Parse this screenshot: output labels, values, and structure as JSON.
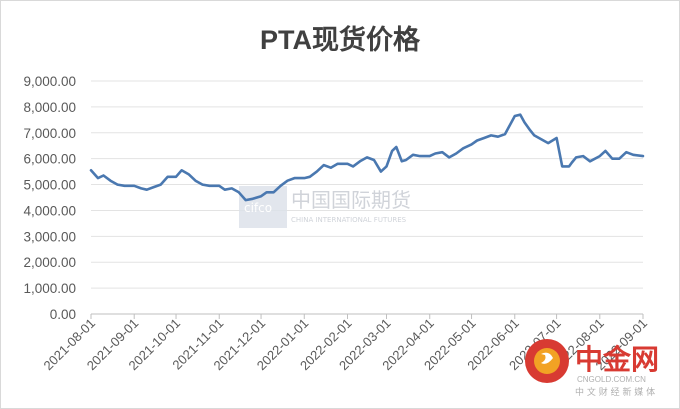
{
  "chart_data": {
    "type": "line",
    "title": "PTA现货价格",
    "xlabel": "",
    "ylabel": "",
    "ylim": [
      0,
      9000
    ],
    "yticks": [
      "9,000.00",
      "8,000.00",
      "7,000.00",
      "6,000.00",
      "5,000.00",
      "4,000.00",
      "3,000.00",
      "2,000.00",
      "1,000.00",
      "0.00"
    ],
    "xticks": [
      "2021-08-01",
      "2021-09-01",
      "2021-10-01",
      "2021-11-01",
      "2021-12-01",
      "2022-01-01",
      "2022-02-01",
      "2022-03-01",
      "2022-04-01",
      "2022-05-01",
      "2022-06-01",
      "2022-07-01",
      "2022-08-01",
      "2022-09-01"
    ],
    "grid": "horizontal",
    "legend": "none",
    "line_color": "#4a78b0",
    "series": [
      {
        "x": [
          "2021-08-01",
          "2021-08-06",
          "2021-08-10",
          "2021-08-15",
          "2021-08-20",
          "2021-08-25",
          "2021-09-01",
          "2021-09-06",
          "2021-09-10",
          "2021-09-15",
          "2021-09-20",
          "2021-09-25",
          "2021-10-01",
          "2021-10-05",
          "2021-10-10",
          "2021-10-15",
          "2021-10-20",
          "2021-10-25",
          "2021-11-01",
          "2021-11-05",
          "2021-11-10",
          "2021-11-15",
          "2021-11-20",
          "2021-11-25",
          "2021-12-01",
          "2021-12-05",
          "2021-12-10",
          "2021-12-15",
          "2021-12-20",
          "2021-12-25",
          "2022-01-01",
          "2022-01-05",
          "2022-01-10",
          "2022-01-15",
          "2022-01-20",
          "2022-01-25",
          "2022-02-01",
          "2022-02-05",
          "2022-02-10",
          "2022-02-15",
          "2022-02-20",
          "2022-02-25",
          "2022-03-01",
          "2022-03-05",
          "2022-03-08",
          "2022-03-12",
          "2022-03-15",
          "2022-03-20",
          "2022-03-25",
          "2022-04-01",
          "2022-04-05",
          "2022-04-10",
          "2022-04-15",
          "2022-04-20",
          "2022-04-25",
          "2022-05-01",
          "2022-05-05",
          "2022-05-10",
          "2022-05-15",
          "2022-05-20",
          "2022-05-25",
          "2022-06-01",
          "2022-06-05",
          "2022-06-08",
          "2022-06-12",
          "2022-06-15",
          "2022-06-20",
          "2022-06-25",
          "2022-07-01",
          "2022-07-05",
          "2022-07-10",
          "2022-07-12",
          "2022-07-15",
          "2022-07-20",
          "2022-07-25",
          "2022-08-01",
          "2022-08-05",
          "2022-08-10",
          "2022-08-15",
          "2022-08-20",
          "2022-08-25",
          "2022-09-01"
        ],
        "y": [
          5550,
          5250,
          5350,
          5150,
          5000,
          4950,
          4950,
          4850,
          4800,
          4900,
          5000,
          5300,
          5300,
          5550,
          5400,
          5150,
          5000,
          4950,
          4950,
          4800,
          4850,
          4700,
          4400,
          4450,
          4550,
          4700,
          4700,
          4950,
          5150,
          5250,
          5250,
          5300,
          5500,
          5750,
          5650,
          5800,
          5800,
          5700,
          5900,
          6050,
          5950,
          5500,
          5700,
          6300,
          6450,
          5900,
          5950,
          6150,
          6100,
          6100,
          6200,
          6250,
          6050,
          6200,
          6400,
          6550,
          6700,
          6800,
          6900,
          6850,
          6950,
          7650,
          7700,
          7400,
          7100,
          6900,
          6750,
          6600,
          6800,
          5700,
          5700,
          5850,
          6050,
          6100,
          5900,
          6100,
          6300,
          6000,
          6000,
          6250,
          6150,
          6100
        ]
      }
    ]
  },
  "watermark": {
    "center_logo_text": "中国国际期货",
    "center_logo_sub": "CHINA INTERNATIONAL FUTURES",
    "corner_brand": "中金网",
    "corner_url": "CNGOLD.COM.CN",
    "corner_tagline": "中 文 财 经 新 媒 体"
  }
}
